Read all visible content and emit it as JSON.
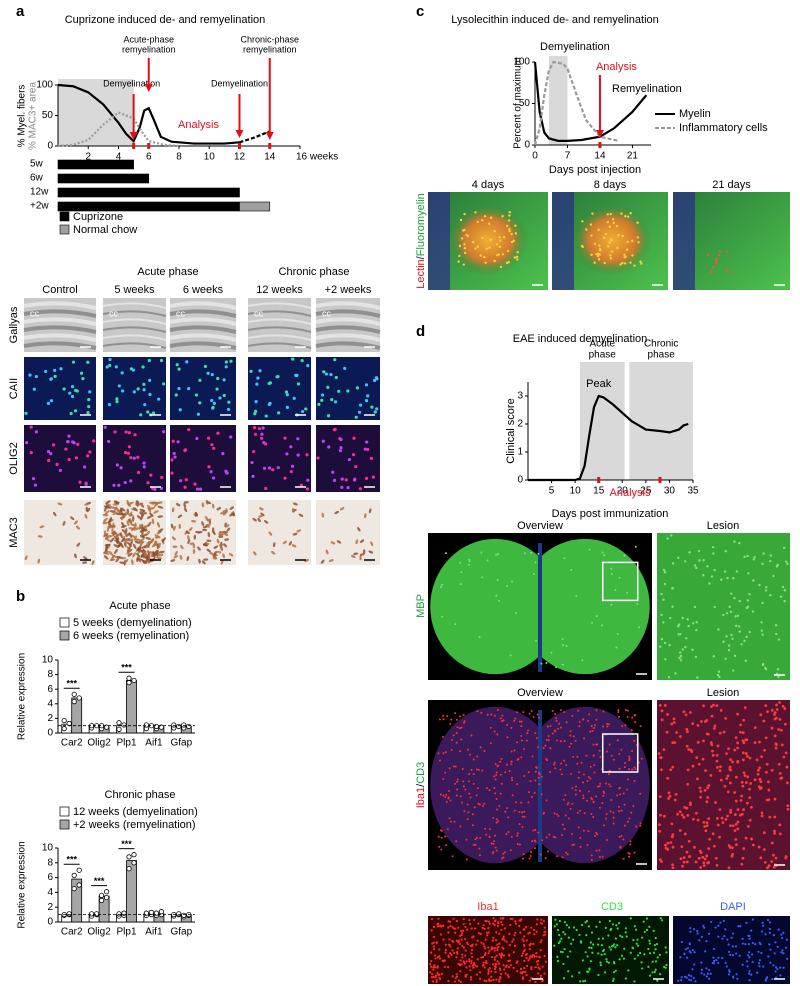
{
  "figure": {
    "letters": [
      "a",
      "b",
      "c",
      "d"
    ],
    "a_images": {
      "groups": [
        "Acute phase",
        "Chronic phase"
      ],
      "columns": [
        "Control",
        "5 weeks",
        "6 weeks",
        "12 weeks",
        "+2 weeks"
      ],
      "rows": [
        "Gallyas",
        "CAII",
        "OLIG2",
        "MAC3"
      ],
      "region": "cc"
    },
    "c_images": {
      "columns": [
        "4 days",
        "8 days",
        "21 days"
      ],
      "stain": [
        "Lectin",
        "/",
        "Fluoromyelin"
      ]
    },
    "d_images": {
      "row1": {
        "columns": [
          "Overview",
          "Lesion"
        ],
        "stain": "MBP"
      },
      "row2": {
        "columns": [
          "Overview",
          "Lesion"
        ],
        "stain": [
          "Iba1",
          "/",
          "CD3"
        ]
      },
      "row3": {
        "columns": [
          "Iba1",
          "CD3",
          "DAPI"
        ]
      }
    }
  },
  "chart_data": [
    {
      "type": "line",
      "title": "Cuprizone induced de- and remyelination",
      "ylabel": [
        "% Myel. fibers",
        "% MAC3+ area"
      ],
      "xlim": [
        0,
        16
      ],
      "ylim": [
        0,
        100
      ],
      "xticks": [
        2,
        4,
        6,
        8,
        10,
        12,
        14,
        {
          "value": 16,
          "label": "16 weeks"
        }
      ],
      "yticks": [
        0,
        50,
        100
      ],
      "shaded": [
        [
          0,
          5
        ]
      ],
      "series": [
        {
          "color": "#000000",
          "style": "solid",
          "x": [
            0,
            1,
            2,
            3,
            4,
            4.5,
            5,
            5.4,
            5.7,
            6,
            6.3,
            6.8,
            7.5,
            9,
            11,
            12
          ],
          "values": [
            100,
            98,
            88,
            68,
            38,
            20,
            8,
            30,
            58,
            62,
            45,
            15,
            7,
            4,
            4,
            6
          ]
        },
        {
          "color": "#000000",
          "style": "dashed",
          "x": [
            12,
            13,
            14
          ],
          "values": [
            6,
            14,
            24
          ]
        },
        {
          "color": "#9a9a9a",
          "style": "dotted",
          "x": [
            0,
            1,
            2,
            3,
            4,
            5,
            5.5,
            6,
            7,
            8
          ],
          "values": [
            0,
            2,
            10,
            35,
            55,
            45,
            25,
            8,
            2,
            0
          ]
        }
      ],
      "arrows": [
        {
          "label": [
            "Demyelination"
          ],
          "x": 5
        },
        {
          "label": [
            "Acute-phase",
            "remyelination"
          ],
          "x": 6
        },
        {
          "label": [
            "Demyelination"
          ],
          "x": 12
        },
        {
          "label": [
            "Chronic-phase",
            "remyelination"
          ],
          "x": 14
        }
      ],
      "analysis": "Analysis",
      "timeline": {
        "rows": [
          "5w",
          "6w",
          "12w",
          "+2w"
        ],
        "series": [
          {
            "name": "Cuprizone",
            "color": "#000000",
            "values": [
              5,
              6,
              12,
              12
            ]
          },
          {
            "name": "Normal chow",
            "color": "#a0a0a0",
            "values": [
              0,
              0,
              0,
              2
            ]
          }
        ]
      }
    },
    {
      "type": "bar",
      "title": "Acute phase",
      "ylabel": "Relative expression",
      "categories": [
        "Car2",
        "Olig2",
        "Plp1",
        "Aif1",
        "Gfap"
      ],
      "ylim": [
        0,
        10
      ],
      "yticks": [
        0,
        2,
        4,
        6,
        8,
        10
      ],
      "reference": 1,
      "significance": [
        "***",
        null,
        "***",
        null,
        null
      ],
      "series": [
        {
          "name": "5 weeks (demyelination)",
          "color": "#ffffff",
          "values": [
            1.2,
            0.9,
            1.0,
            0.9,
            0.9
          ],
          "points": [
            [
              0.6,
              1.3,
              1.7
            ],
            [
              0.7,
              1.0,
              1.0
            ],
            [
              0.5,
              1.1,
              1.4
            ],
            [
              0.6,
              1.0,
              1.1
            ],
            [
              0.7,
              0.9,
              1.1
            ]
          ]
        },
        {
          "name": "6 weeks (remyelination)",
          "color": "#a6a6a6",
          "values": [
            4.8,
            0.8,
            7.2,
            0.8,
            0.9
          ],
          "points": [
            [
              4.3,
              4.8,
              5.3
            ],
            [
              0.6,
              0.8,
              1.0
            ],
            [
              6.9,
              7.2,
              7.5
            ],
            [
              0.6,
              0.8,
              0.9
            ],
            [
              0.7,
              0.9,
              1.1
            ]
          ]
        }
      ]
    },
    {
      "type": "bar",
      "title": "Chronic phase",
      "ylabel": "Relative expression",
      "categories": [
        "Car2",
        "Olig2",
        "Plp1",
        "Aif1",
        "Gfap"
      ],
      "ylim": [
        0,
        10
      ],
      "yticks": [
        0,
        2,
        4,
        6,
        8,
        10
      ],
      "reference": 1,
      "significance": [
        "***",
        "***",
        "***",
        null,
        null
      ],
      "series": [
        {
          "name": "12 weeks (demyelination)",
          "color": "#ffffff",
          "values": [
            1.0,
            1.0,
            1.0,
            1.1,
            1.0
          ],
          "points": [
            [
              0.9,
              1.0,
              1.0,
              1.1
            ],
            [
              0.8,
              1.0,
              1.1,
              1.1
            ],
            [
              0.8,
              0.9,
              1.1,
              1.2
            ],
            [
              0.9,
              1.0,
              1.2,
              1.3
            ],
            [
              0.8,
              1.0,
              1.0,
              1.1
            ]
          ]
        },
        {
          "name": "+2 weeks (remyelination)",
          "color": "#a6a6a6",
          "values": [
            5.8,
            3.5,
            8.3,
            1.1,
            0.9
          ],
          "points": [
            [
              4.5,
              5.0,
              6.3,
              7.0
            ],
            [
              2.9,
              3.3,
              3.6,
              4.1
            ],
            [
              7.2,
              8.0,
              8.8,
              9.1
            ],
            [
              0.9,
              1.0,
              1.2,
              1.4
            ],
            [
              0.7,
              0.9,
              0.9,
              1.0
            ]
          ]
        }
      ]
    },
    {
      "type": "line",
      "title": "Lysolecithin induced de- and remyelination",
      "ylabel": "Percent of maximum",
      "xlabel": "Days post injection",
      "xlim": [
        0,
        25
      ],
      "ylim": [
        0,
        100
      ],
      "xticks": [
        0,
        7,
        14,
        21
      ],
      "yticks": [
        0,
        50,
        100
      ],
      "shaded": [
        [
          3,
          7
        ]
      ],
      "series": [
        {
          "name": "Myelin",
          "color": "#000000",
          "style": "solid",
          "x": [
            0,
            1,
            2,
            3,
            5,
            7,
            10,
            14,
            17,
            21,
            24
          ],
          "values": [
            100,
            40,
            15,
            8,
            5,
            5,
            6,
            10,
            20,
            40,
            60
          ]
        },
        {
          "name": "Inflammatory cells",
          "color": "#9a9a9a",
          "style": "dashed",
          "x": [
            0,
            1,
            2,
            3,
            4,
            6,
            7,
            9,
            11,
            14,
            18
          ],
          "values": [
            0,
            20,
            60,
            90,
            100,
            98,
            92,
            60,
            30,
            10,
            5
          ]
        }
      ],
      "annotations": [
        "Demyelination",
        "Remyelination"
      ],
      "arrows": [
        {
          "label": [
            "Analysis"
          ],
          "x": 14
        }
      ]
    },
    {
      "type": "line",
      "title": "EAE induced demyelination",
      "ylabel": "Clinical score",
      "xlabel": "Days post immunization",
      "xlim": [
        0,
        35
      ],
      "ylim": [
        0,
        3.5
      ],
      "xticks": [
        5,
        10,
        15,
        20,
        25,
        30,
        35
      ],
      "yticks": [
        0,
        1,
        2,
        3
      ],
      "regions": [
        {
          "label": [
            "Acute",
            "phase"
          ],
          "range": [
            11,
            20.5
          ]
        },
        {
          "label": [
            "Chronic",
            "phase"
          ],
          "range": [
            21.5,
            35
          ]
        }
      ],
      "peak": "Peak",
      "series": [
        {
          "color": "#000000",
          "style": "solid",
          "x": [
            0,
            10,
            11,
            12,
            13,
            14,
            15,
            16,
            18,
            20,
            22,
            25,
            28,
            30,
            32,
            33,
            34
          ],
          "values": [
            0,
            0,
            0.05,
            0.5,
            1.6,
            2.6,
            3.0,
            2.95,
            2.7,
            2.4,
            2.1,
            1.8,
            1.75,
            1.7,
            1.8,
            1.95,
            2.0
          ]
        }
      ],
      "analysis": "Analysis",
      "analysis_x": [
        15,
        28
      ]
    }
  ]
}
